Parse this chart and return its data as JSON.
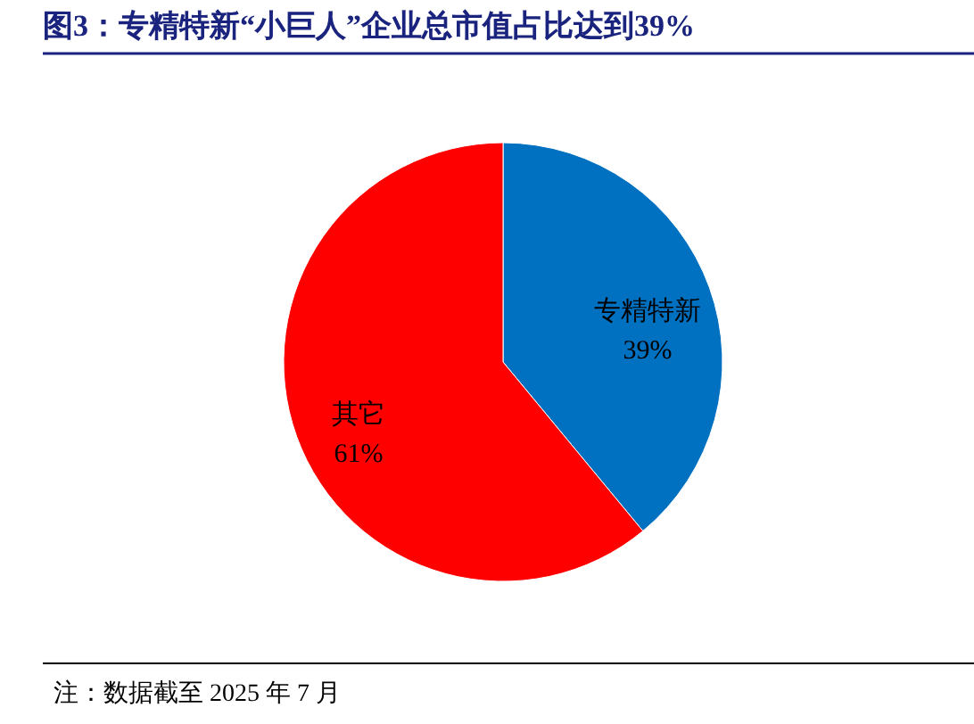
{
  "chart_data": {
    "type": "pie",
    "title": "图3：专精特新“小巨人”企业总市值占比达到39%",
    "categories": [
      "专精特新",
      "其它"
    ],
    "values": [
      39,
      61
    ],
    "colors": [
      "#0070c0",
      "#ff0000"
    ],
    "value_labels": [
      "39%",
      "61%"
    ],
    "annotations": [
      "注：数据截至 2025 年 7 月"
    ]
  }
}
